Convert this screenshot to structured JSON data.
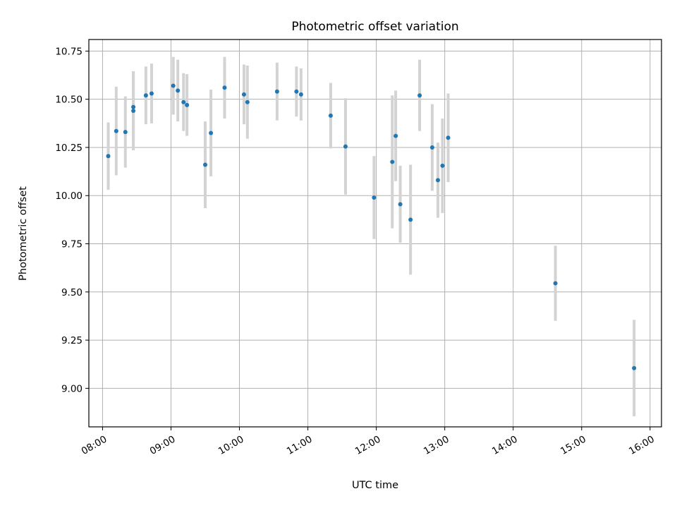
{
  "chart_data": {
    "type": "scatter",
    "title": "Photometric offset variation",
    "xlabel": "UTC time",
    "ylabel": "Photometric offset",
    "grid": true,
    "x_tick_labels": [
      "08:00",
      "09:00",
      "10:00",
      "11:00",
      "12:00",
      "13:00",
      "14:00",
      "15:00",
      "16:00"
    ],
    "y_tick_labels": [
      "9.00",
      "9.25",
      "9.50",
      "9.75",
      "10.00",
      "10.25",
      "10.50",
      "10.75"
    ],
    "xlim": [
      "07:48",
      "16:10"
    ],
    "ylim": [
      8.8,
      10.81
    ],
    "colors": {
      "point": "#1f77b4",
      "errorbar": "#d3d3d3",
      "grid": "#b0b0b0"
    },
    "points": [
      {
        "x": "08:05",
        "y": 10.205,
        "err": 0.175
      },
      {
        "x": "08:12",
        "y": 10.335,
        "err": 0.23
      },
      {
        "x": "08:20",
        "y": 10.33,
        "err": 0.185
      },
      {
        "x": "08:27",
        "y": 10.46,
        "err": 0.185
      },
      {
        "x": "08:27",
        "y": 10.44,
        "err": 0.205
      },
      {
        "x": "08:38",
        "y": 10.52,
        "err": 0.15
      },
      {
        "x": "08:43",
        "y": 10.53,
        "err": 0.155
      },
      {
        "x": "09:02",
        "y": 10.57,
        "err": 0.15
      },
      {
        "x": "09:06",
        "y": 10.545,
        "err": 0.16
      },
      {
        "x": "09:11",
        "y": 10.485,
        "err": 0.15
      },
      {
        "x": "09:14",
        "y": 10.47,
        "err": 0.16
      },
      {
        "x": "09:30",
        "y": 10.16,
        "err": 0.225
      },
      {
        "x": "09:35",
        "y": 10.325,
        "err": 0.225
      },
      {
        "x": "09:47",
        "y": 10.56,
        "err": 0.16
      },
      {
        "x": "10:04",
        "y": 10.525,
        "err": 0.155
      },
      {
        "x": "10:07",
        "y": 10.485,
        "err": 0.19
      },
      {
        "x": "10:33",
        "y": 10.54,
        "err": 0.15
      },
      {
        "x": "10:50",
        "y": 10.54,
        "err": 0.13
      },
      {
        "x": "10:54",
        "y": 10.525,
        "err": 0.135
      },
      {
        "x": "11:20",
        "y": 10.415,
        "err": 0.17
      },
      {
        "x": "11:33",
        "y": 10.255,
        "err": 0.25
      },
      {
        "x": "11:58",
        "y": 9.99,
        "err": 0.215
      },
      {
        "x": "12:14",
        "y": 10.175,
        "err": 0.345
      },
      {
        "x": "12:17",
        "y": 10.31,
        "err": 0.235
      },
      {
        "x": "12:21",
        "y": 9.955,
        "err": 0.2
      },
      {
        "x": "12:30",
        "y": 9.875,
        "err": 0.285
      },
      {
        "x": "12:38",
        "y": 10.52,
        "err": 0.185
      },
      {
        "x": "12:49",
        "y": 10.25,
        "err": 0.225
      },
      {
        "x": "12:54",
        "y": 10.08,
        "err": 0.195
      },
      {
        "x": "12:58",
        "y": 10.155,
        "err": 0.245
      },
      {
        "x": "13:03",
        "y": 10.3,
        "err": 0.23
      },
      {
        "x": "14:37",
        "y": 9.545,
        "err": 0.195
      },
      {
        "x": "15:46",
        "y": 9.105,
        "err": 0.25
      }
    ]
  }
}
